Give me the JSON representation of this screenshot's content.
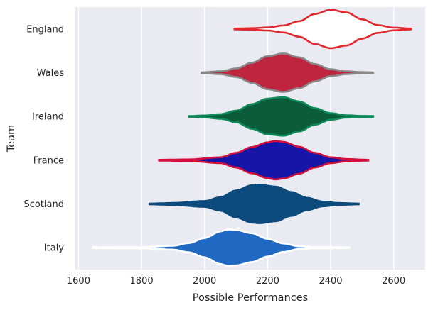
{
  "chart_data": {
    "type": "violin",
    "orientation": "horizontal",
    "xlabel": "Possible Performances",
    "ylabel": "Team",
    "xlim": [
      1590,
      2700
    ],
    "xticks": [
      1600,
      1800,
      2000,
      2200,
      2400,
      2600
    ],
    "grid": true,
    "style": {
      "background": "#EAEAF2",
      "grid_color": "#FFFFFF"
    },
    "categories": [
      "England",
      "Wales",
      "Ireland",
      "France",
      "Scotland",
      "Italy"
    ],
    "series": [
      {
        "category": "England",
        "fill": "#FFFFFF",
        "edge": "#E0282E",
        "min": 2095,
        "max": 2655,
        "profile": [
          [
            2095,
            0.02
          ],
          [
            2150,
            0.04
          ],
          [
            2200,
            0.08
          ],
          [
            2250,
            0.18
          ],
          [
            2300,
            0.4
          ],
          [
            2350,
            0.78
          ],
          [
            2400,
            1.0
          ],
          [
            2450,
            0.86
          ],
          [
            2500,
            0.5
          ],
          [
            2550,
            0.2
          ],
          [
            2600,
            0.07
          ],
          [
            2655,
            0.02
          ]
        ]
      },
      {
        "category": "Wales",
        "fill": "#C0253F",
        "edge": "#888888",
        "min": 1990,
        "max": 2535,
        "profile": [
          [
            1990,
            0.02
          ],
          [
            2050,
            0.07
          ],
          [
            2100,
            0.22
          ],
          [
            2150,
            0.52
          ],
          [
            2200,
            0.86
          ],
          [
            2250,
            1.0
          ],
          [
            2300,
            0.8
          ],
          [
            2350,
            0.45
          ],
          [
            2400,
            0.18
          ],
          [
            2450,
            0.07
          ],
          [
            2500,
            0.03
          ],
          [
            2535,
            0.02
          ]
        ]
      },
      {
        "category": "Ireland",
        "fill": "#0A5C3A",
        "edge": "#0E8A5A",
        "min": 1950,
        "max": 2535,
        "profile": [
          [
            1950,
            0.02
          ],
          [
            2000,
            0.05
          ],
          [
            2050,
            0.12
          ],
          [
            2100,
            0.3
          ],
          [
            2150,
            0.64
          ],
          [
            2200,
            0.93
          ],
          [
            2250,
            1.0
          ],
          [
            2300,
            0.78
          ],
          [
            2350,
            0.43
          ],
          [
            2400,
            0.17
          ],
          [
            2450,
            0.06
          ],
          [
            2500,
            0.03
          ],
          [
            2535,
            0.02
          ]
        ]
      },
      {
        "category": "France",
        "fill": "#1515AA",
        "edge": "#D0103A",
        "min": 1855,
        "max": 2520,
        "profile": [
          [
            1855,
            0.02
          ],
          [
            1950,
            0.04
          ],
          [
            2050,
            0.15
          ],
          [
            2100,
            0.38
          ],
          [
            2150,
            0.68
          ],
          [
            2200,
            0.93
          ],
          [
            2225,
            1.0
          ],
          [
            2250,
            0.95
          ],
          [
            2300,
            0.7
          ],
          [
            2350,
            0.38
          ],
          [
            2400,
            0.15
          ],
          [
            2450,
            0.06
          ],
          [
            2520,
            0.02
          ]
        ]
      },
      {
        "category": "Scotland",
        "fill": "#0B4A7A",
        "edge": "#0B4A7A",
        "min": 1825,
        "max": 2490,
        "profile": [
          [
            1825,
            0.02
          ],
          [
            1900,
            0.05
          ],
          [
            2000,
            0.15
          ],
          [
            2050,
            0.35
          ],
          [
            2100,
            0.7
          ],
          [
            2150,
            0.97
          ],
          [
            2175,
            1.0
          ],
          [
            2225,
            0.9
          ],
          [
            2275,
            0.62
          ],
          [
            2325,
            0.32
          ],
          [
            2375,
            0.12
          ],
          [
            2425,
            0.05
          ],
          [
            2490,
            0.02
          ]
        ]
      },
      {
        "category": "Italy",
        "fill": "#1F69C2",
        "edge": "#FFFFFF",
        "min": 1645,
        "max": 2460,
        "profile": [
          [
            1645,
            0.02
          ],
          [
            1800,
            0.03
          ],
          [
            1900,
            0.1
          ],
          [
            1950,
            0.24
          ],
          [
            2000,
            0.5
          ],
          [
            2050,
            0.85
          ],
          [
            2075,
            0.95
          ],
          [
            2100,
            0.92
          ],
          [
            2150,
            0.75
          ],
          [
            2200,
            0.46
          ],
          [
            2250,
            0.22
          ],
          [
            2300,
            0.07
          ],
          [
            2350,
            0.03
          ],
          [
            2460,
            0.02
          ]
        ]
      }
    ]
  }
}
